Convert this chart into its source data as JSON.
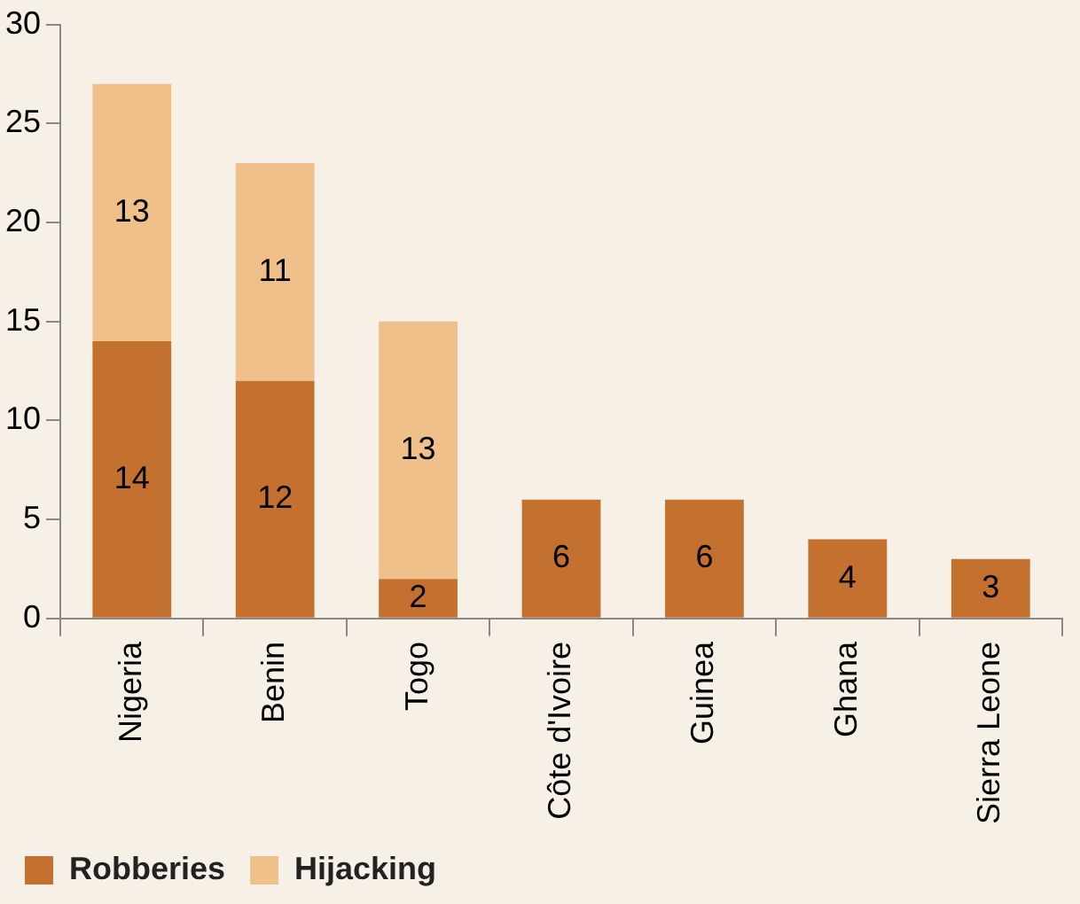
{
  "chart_data": {
    "type": "bar",
    "stacked": true,
    "categories": [
      "Nigeria",
      "Benin",
      "Togo",
      "Côte d'Ivoire",
      "Guinea",
      "Ghana",
      "Sierra Leone"
    ],
    "series": [
      {
        "name": "Robberies",
        "color": "#c4702f",
        "values": [
          14,
          12,
          2,
          6,
          6,
          4,
          3
        ]
      },
      {
        "name": "Hijacking",
        "color": "#f0c08a",
        "values": [
          13,
          11,
          13,
          null,
          null,
          null,
          null
        ]
      }
    ],
    "ylim": [
      0,
      30
    ],
    "yticks": [
      0,
      5,
      10,
      15,
      20,
      25,
      30
    ],
    "grid": false,
    "legend": "bottom",
    "data_labels": true
  }
}
